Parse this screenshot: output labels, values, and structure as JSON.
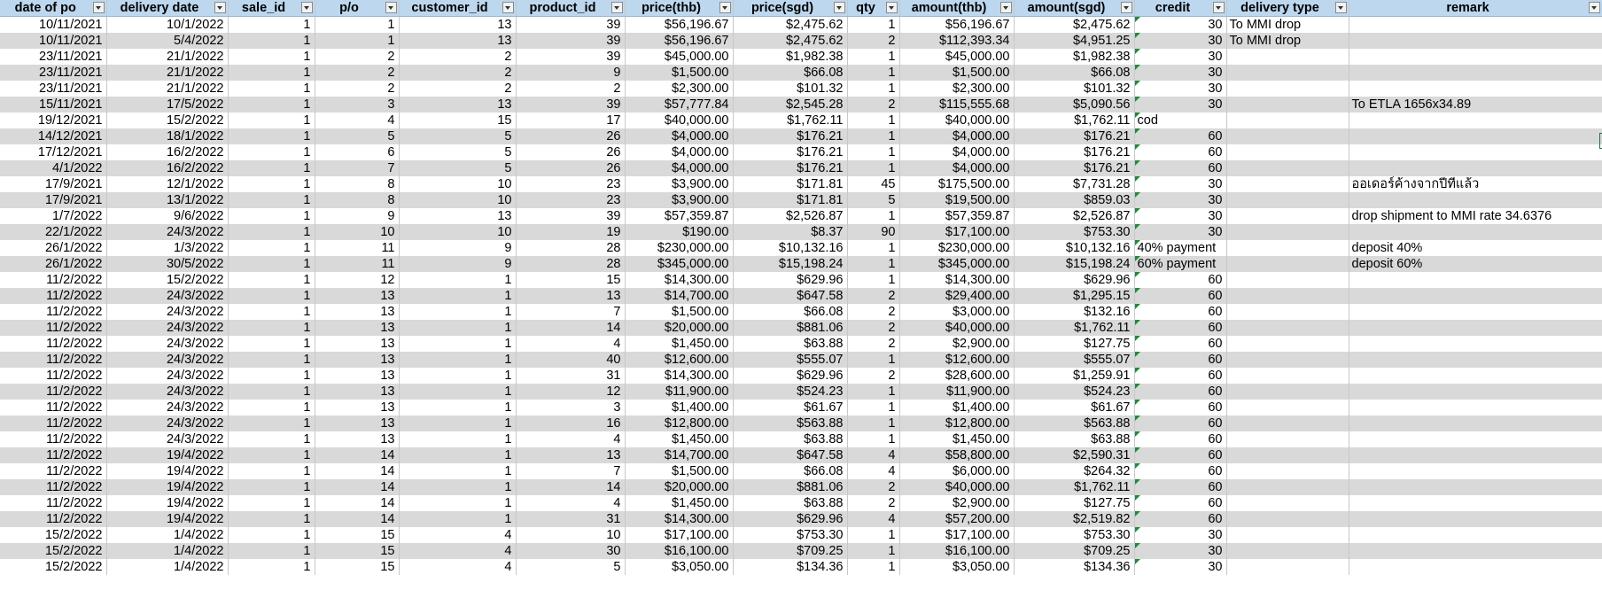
{
  "sheet": {
    "columns": [
      "date of po",
      "delivery date",
      "sale_id",
      "p/o",
      "customer_id",
      "product_id",
      "price(thb)",
      "price(sgd)",
      "qty",
      "amount(thb)",
      "amount(sgd)",
      "credit",
      "delivery type",
      "remark"
    ],
    "rows": [
      [
        "10/11/2021",
        "10/1/2022",
        "1",
        "1",
        "13",
        "39",
        "$56,196.67",
        "$2,475.62",
        "1",
        "$56,196.67",
        "$2,475.62",
        "30",
        "To MMI drop",
        ""
      ],
      [
        "10/11/2021",
        "5/4/2022",
        "1",
        "1",
        "13",
        "39",
        "$56,196.67",
        "$2,475.62",
        "2",
        "$112,393.34",
        "$4,951.25",
        "30",
        "To MMI drop",
        ""
      ],
      [
        "23/11/2021",
        "21/1/2022",
        "1",
        "2",
        "2",
        "39",
        "$45,000.00",
        "$1,982.38",
        "1",
        "$45,000.00",
        "$1,982.38",
        "30",
        "",
        ""
      ],
      [
        "23/11/2021",
        "21/1/2022",
        "1",
        "2",
        "2",
        "9",
        "$1,500.00",
        "$66.08",
        "1",
        "$1,500.00",
        "$66.08",
        "30",
        "",
        ""
      ],
      [
        "23/11/2021",
        "21/1/2022",
        "1",
        "2",
        "2",
        "2",
        "$2,300.00",
        "$101.32",
        "1",
        "$2,300.00",
        "$101.32",
        "30",
        "",
        ""
      ],
      [
        "15/11/2021",
        "17/5/2022",
        "1",
        "3",
        "13",
        "39",
        "$57,777.84",
        "$2,545.28",
        "2",
        "$115,555.68",
        "$5,090.56",
        "30",
        "",
        "To ETLA 1656x34.89"
      ],
      [
        "19/12/2021",
        "15/2/2022",
        "1",
        "4",
        "15",
        "17",
        "$40,000.00",
        "$1,762.11",
        "1",
        "$40,000.00",
        "$1,762.11",
        "cod",
        "",
        ""
      ],
      [
        "14/12/2021",
        "18/1/2022",
        "1",
        "5",
        "5",
        "26",
        "$4,000.00",
        "$176.21",
        "1",
        "$4,000.00",
        "$176.21",
        "60",
        "",
        ""
      ],
      [
        "17/12/2021",
        "16/2/2022",
        "1",
        "6",
        "5",
        "26",
        "$4,000.00",
        "$176.21",
        "1",
        "$4,000.00",
        "$176.21",
        "60",
        "",
        ""
      ],
      [
        "4/1/2022",
        "16/2/2022",
        "1",
        "7",
        "5",
        "26",
        "$4,000.00",
        "$176.21",
        "1",
        "$4,000.00",
        "$176.21",
        "60",
        "",
        ""
      ],
      [
        "17/9/2021",
        "12/1/2022",
        "1",
        "8",
        "10",
        "23",
        "$3,900.00",
        "$171.81",
        "45",
        "$175,500.00",
        "$7,731.28",
        "30",
        "",
        "ออเดอร์ค้างจากปีที่แล้ว"
      ],
      [
        "17/9/2021",
        "13/1/2022",
        "1",
        "8",
        "10",
        "23",
        "$3,900.00",
        "$171.81",
        "5",
        "$19,500.00",
        "$859.03",
        "30",
        "",
        ""
      ],
      [
        "1/7/2022",
        "9/6/2022",
        "1",
        "9",
        "13",
        "39",
        "$57,359.87",
        "$2,526.87",
        "1",
        "$57,359.87",
        "$2,526.87",
        "30",
        "",
        "drop shipment to MMI rate 34.6376"
      ],
      [
        "22/1/2022",
        "24/3/2022",
        "1",
        "10",
        "10",
        "19",
        "$190.00",
        "$8.37",
        "90",
        "$17,100.00",
        "$753.30",
        "30",
        "",
        ""
      ],
      [
        "26/1/2022",
        "1/3/2022",
        "1",
        "11",
        "9",
        "28",
        "$230,000.00",
        "$10,132.16",
        "1",
        "$230,000.00",
        "$10,132.16",
        "40% payment",
        "",
        "deposit 40%"
      ],
      [
        "26/1/2022",
        "30/5/2022",
        "1",
        "11",
        "9",
        "28",
        "$345,000.00",
        "$15,198.24",
        "1",
        "$345,000.00",
        "$15,198.24",
        "60% payment",
        "",
        "deposit 60%"
      ],
      [
        "11/2/2022",
        "15/2/2022",
        "1",
        "12",
        "1",
        "15",
        "$14,300.00",
        "$629.96",
        "1",
        "$14,300.00",
        "$629.96",
        "60",
        "",
        ""
      ],
      [
        "11/2/2022",
        "24/3/2022",
        "1",
        "13",
        "1",
        "13",
        "$14,700.00",
        "$647.58",
        "2",
        "$29,400.00",
        "$1,295.15",
        "60",
        "",
        ""
      ],
      [
        "11/2/2022",
        "24/3/2022",
        "1",
        "13",
        "1",
        "7",
        "$1,500.00",
        "$66.08",
        "2",
        "$3,000.00",
        "$132.16",
        "60",
        "",
        ""
      ],
      [
        "11/2/2022",
        "24/3/2022",
        "1",
        "13",
        "1",
        "14",
        "$20,000.00",
        "$881.06",
        "2",
        "$40,000.00",
        "$1,762.11",
        "60",
        "",
        ""
      ],
      [
        "11/2/2022",
        "24/3/2022",
        "1",
        "13",
        "1",
        "4",
        "$1,450.00",
        "$63.88",
        "2",
        "$2,900.00",
        "$127.75",
        "60",
        "",
        ""
      ],
      [
        "11/2/2022",
        "24/3/2022",
        "1",
        "13",
        "1",
        "40",
        "$12,600.00",
        "$555.07",
        "1",
        "$12,600.00",
        "$555.07",
        "60",
        "",
        ""
      ],
      [
        "11/2/2022",
        "24/3/2022",
        "1",
        "13",
        "1",
        "31",
        "$14,300.00",
        "$629.96",
        "2",
        "$28,600.00",
        "$1,259.91",
        "60",
        "",
        ""
      ],
      [
        "11/2/2022",
        "24/3/2022",
        "1",
        "13",
        "1",
        "12",
        "$11,900.00",
        "$524.23",
        "1",
        "$11,900.00",
        "$524.23",
        "60",
        "",
        ""
      ],
      [
        "11/2/2022",
        "24/3/2022",
        "1",
        "13",
        "1",
        "3",
        "$1,400.00",
        "$61.67",
        "1",
        "$1,400.00",
        "$61.67",
        "60",
        "",
        ""
      ],
      [
        "11/2/2022",
        "24/3/2022",
        "1",
        "13",
        "1",
        "16",
        "$12,800.00",
        "$563.88",
        "1",
        "$12,800.00",
        "$563.88",
        "60",
        "",
        ""
      ],
      [
        "11/2/2022",
        "24/3/2022",
        "1",
        "13",
        "1",
        "4",
        "$1,450.00",
        "$63.88",
        "1",
        "$1,450.00",
        "$63.88",
        "60",
        "",
        ""
      ],
      [
        "11/2/2022",
        "19/4/2022",
        "1",
        "14",
        "1",
        "13",
        "$14,700.00",
        "$647.58",
        "4",
        "$58,800.00",
        "$2,590.31",
        "60",
        "",
        ""
      ],
      [
        "11/2/2022",
        "19/4/2022",
        "1",
        "14",
        "1",
        "7",
        "$1,500.00",
        "$66.08",
        "4",
        "$6,000.00",
        "$264.32",
        "60",
        "",
        ""
      ],
      [
        "11/2/2022",
        "19/4/2022",
        "1",
        "14",
        "1",
        "14",
        "$20,000.00",
        "$881.06",
        "2",
        "$40,000.00",
        "$1,762.11",
        "60",
        "",
        ""
      ],
      [
        "11/2/2022",
        "19/4/2022",
        "1",
        "14",
        "1",
        "4",
        "$1,450.00",
        "$63.88",
        "2",
        "$2,900.00",
        "$127.75",
        "60",
        "",
        ""
      ],
      [
        "11/2/2022",
        "19/4/2022",
        "1",
        "14",
        "1",
        "31",
        "$14,300.00",
        "$629.96",
        "4",
        "$57,200.00",
        "$2,519.82",
        "60",
        "",
        ""
      ],
      [
        "15/2/2022",
        "1/4/2022",
        "1",
        "15",
        "4",
        "10",
        "$17,100.00",
        "$753.30",
        "1",
        "$17,100.00",
        "$753.30",
        "30",
        "",
        ""
      ],
      [
        "15/2/2022",
        "1/4/2022",
        "1",
        "15",
        "4",
        "30",
        "$16,100.00",
        "$709.25",
        "1",
        "$16,100.00",
        "$709.25",
        "30",
        "",
        ""
      ],
      [
        "15/2/2022",
        "1/4/2022",
        "1",
        "15",
        "4",
        "5",
        "$3,050.00",
        "$134.36",
        "1",
        "$3,050.00",
        "$134.36",
        "30",
        "",
        ""
      ]
    ]
  },
  "colors": {
    "header_bg": "#bdd7ee",
    "band_bg": "#d9d9d9",
    "error_indicator": "#1e8a3c"
  },
  "icons": {
    "filter": "filter-dropdown-icon",
    "cell_note": "green-triangle-indicator"
  }
}
